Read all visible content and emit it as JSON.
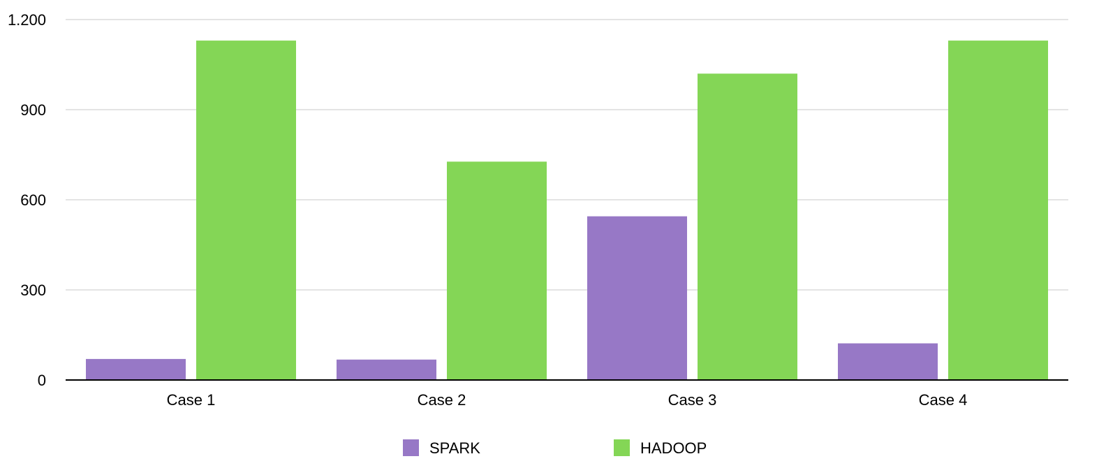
{
  "chart_data": {
    "type": "bar",
    "title": "",
    "xlabel": "",
    "ylabel": "",
    "categories": [
      "Case 1",
      "Case 2",
      "Case 3",
      "Case 4"
    ],
    "series": [
      {
        "name": "SPARK",
        "color": "#9778C6",
        "values": [
          70,
          68,
          545,
          122
        ]
      },
      {
        "name": "HADOOP",
        "color": "#84D656",
        "values": [
          1130,
          727,
          1020,
          1130
        ]
      }
    ],
    "ylim": [
      0,
      1200
    ],
    "yticks": [
      0,
      300,
      600,
      900,
      1200
    ],
    "ytick_labels": [
      "0",
      "300",
      "600",
      "900",
      "1.200"
    ],
    "grid": true,
    "legend_position": "bottom-center",
    "colors": {
      "grid": "#C8C8C8",
      "axis": "#000000"
    }
  }
}
